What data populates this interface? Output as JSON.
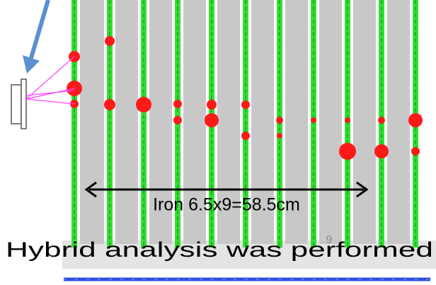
{
  "annotations": {
    "dimension": "Iron 6.5x9=58.5cm",
    "page_number": "9",
    "caption": "Hybrid analysis was performed"
  }
}
